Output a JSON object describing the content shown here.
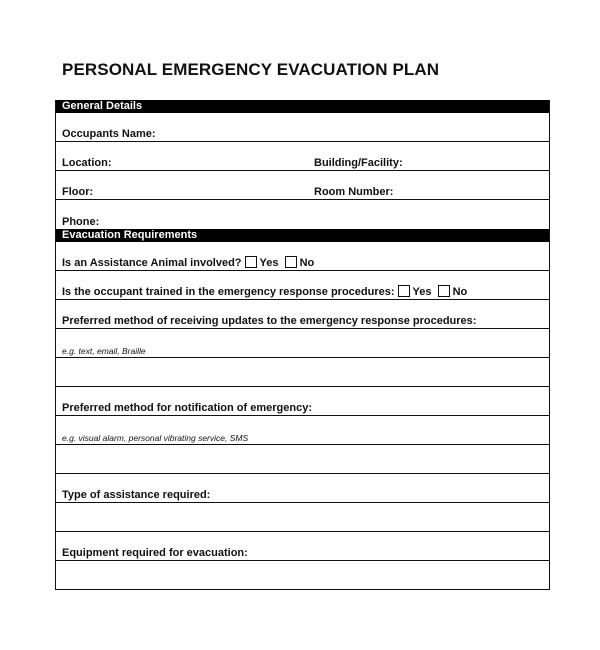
{
  "title": "PERSONAL EMERGENCY EVACUATION PLAN",
  "general": {
    "header": "General Details",
    "occupants_name": "Occupants Name:",
    "location": "Location:",
    "building": "Building/Facility:",
    "floor": "Floor:",
    "room": "Room Number:",
    "phone": "Phone:"
  },
  "evacuation": {
    "header": "Evacuation Requirements",
    "animal_q": "Is an Assistance Animal involved?",
    "trained_q": "Is the occupant trained in the emergency response procedures:",
    "yes": "Yes",
    "no": "No",
    "updates_q": "Preferred method of receiving updates to the emergency response procedures:",
    "updates_hint": "e.g. text, email, Braille",
    "notification_q": "Preferred method for notification of emergency:",
    "notification_hint": "e.g. visual alarm, personal vibrating service, SMS",
    "assistance_q": "Type of assistance required:",
    "equipment_q": "Equipment required for evacuation:"
  }
}
